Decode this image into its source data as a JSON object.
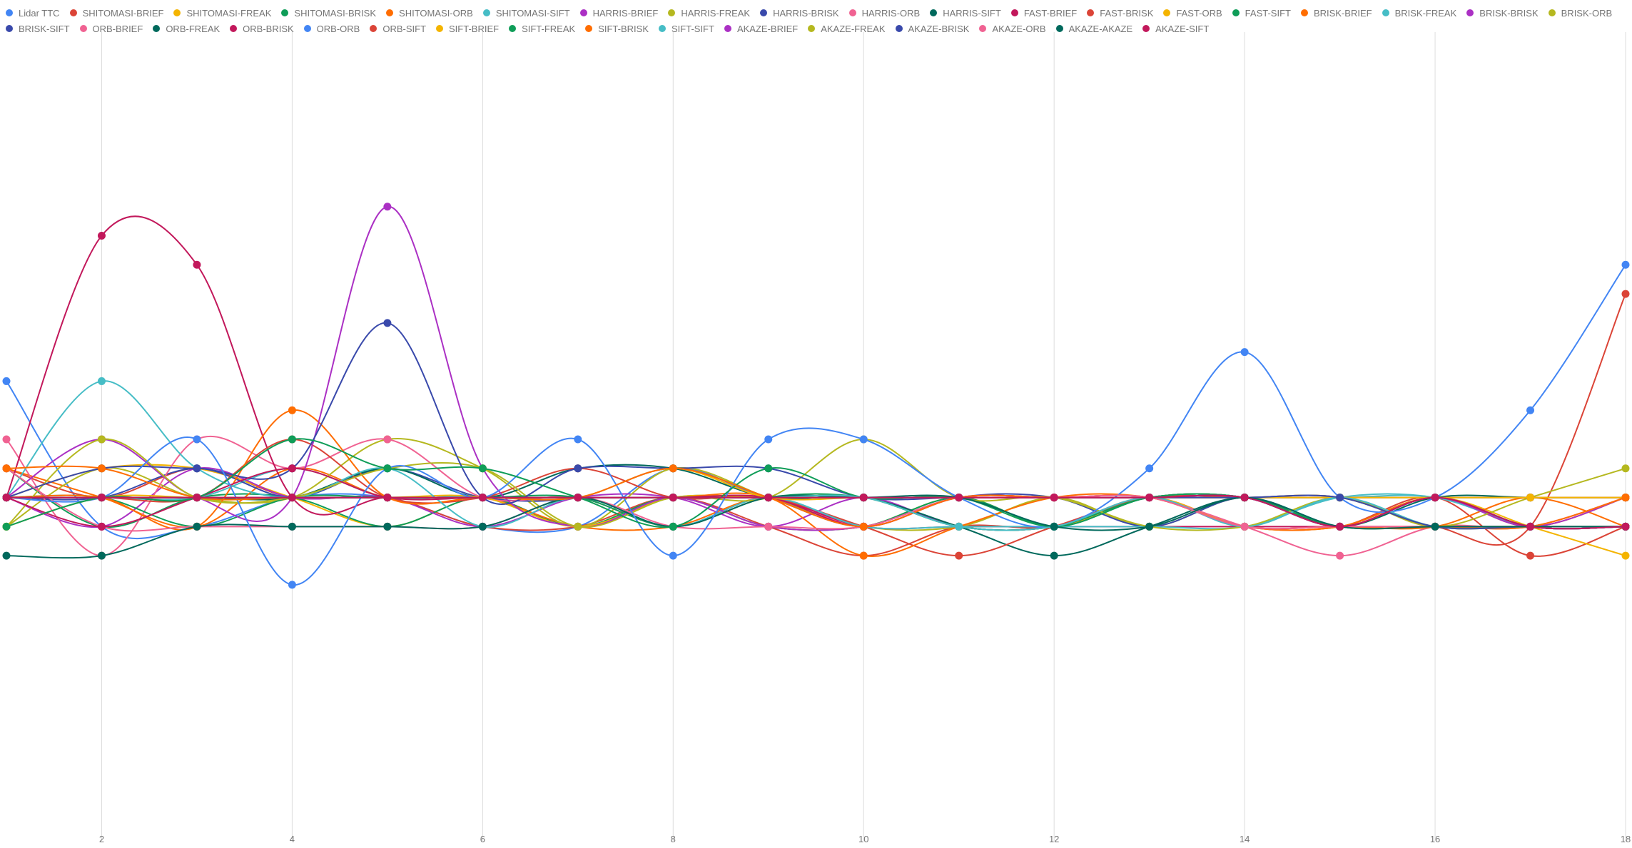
{
  "chart_data": {
    "type": "line",
    "x": [
      1,
      2,
      3,
      4,
      5,
      6,
      7,
      8,
      9,
      10,
      11,
      12,
      13,
      14,
      15,
      16,
      17,
      18
    ],
    "xticks": [
      2,
      4,
      6,
      8,
      10,
      12,
      14,
      16,
      18
    ],
    "xlim": [
      1,
      18
    ],
    "ylim": [
      0,
      28
    ],
    "grid": "vertical",
    "legend_position": "top",
    "series": [
      {
        "name": "Lidar TTC",
        "color": "#4285f4",
        "values": [
          16,
          11,
          11,
          12,
          12,
          11,
          11,
          13,
          12,
          12,
          11,
          11,
          12,
          12,
          11,
          12,
          11,
          11
        ]
      },
      {
        "name": "SHITOMASI-BRIEF",
        "color": "#db4437",
        "values": [
          13,
          12,
          13,
          12,
          12,
          11,
          11,
          12,
          11,
          10,
          11,
          11,
          12,
          11,
          11,
          12,
          10,
          11
        ]
      },
      {
        "name": "SHITOMASI-FREAK",
        "color": "#f4b400",
        "values": [
          12,
          13,
          13,
          12,
          11,
          12,
          11,
          12,
          11,
          11,
          12,
          11,
          12,
          11,
          11,
          12,
          11,
          10
        ]
      },
      {
        "name": "SHITOMASI-BRISK",
        "color": "#0f9d58",
        "values": [
          13,
          11,
          12,
          12,
          11,
          12,
          11,
          12,
          11,
          11,
          12,
          11,
          12,
          12,
          11,
          12,
          11,
          11
        ]
      },
      {
        "name": "SHITOMASI-ORB",
        "color": "#ff6d01",
        "values": [
          13,
          12,
          11,
          13,
          12,
          12,
          11,
          11,
          12,
          11,
          12,
          12,
          12,
          11,
          11,
          12,
          11,
          12
        ]
      },
      {
        "name": "SHITOMASI-SIFT",
        "color": "#46bdc6",
        "values": [
          12,
          12,
          12,
          13,
          12,
          12,
          11,
          12,
          12,
          12,
          11,
          11,
          12,
          12,
          12,
          12,
          11,
          11
        ]
      },
      {
        "name": "HARRIS-BRIEF",
        "color": "#ab30c4",
        "values": [
          12,
          11,
          13,
          12,
          12,
          11,
          12,
          12,
          11,
          12,
          11,
          11,
          12,
          12,
          11,
          12,
          11,
          11
        ]
      },
      {
        "name": "HARRIS-FREAK",
        "color": "#b5b81f",
        "values": [
          11,
          13,
          12,
          12,
          14,
          13,
          11,
          13,
          12,
          11,
          11,
          12,
          11,
          12,
          11,
          12,
          11,
          12
        ]
      },
      {
        "name": "HARRIS-BRISK",
        "color": "#3949ab",
        "values": [
          12,
          12,
          13,
          12,
          13,
          12,
          12,
          13,
          12,
          11,
          12,
          12,
          11,
          12,
          11,
          12,
          11,
          11
        ]
      },
      {
        "name": "HARRIS-ORB",
        "color": "#f06292",
        "values": [
          14,
          10,
          14,
          13,
          14,
          12,
          12,
          11,
          12,
          11,
          12,
          12,
          12,
          11,
          10,
          11,
          11,
          12
        ]
      },
      {
        "name": "HARRIS-SIFT",
        "color": "#00695c",
        "values": [
          12,
          12,
          12,
          12,
          13,
          12,
          13,
          13,
          12,
          12,
          11,
          10,
          11,
          12,
          11,
          12,
          11,
          11
        ]
      },
      {
        "name": "FAST-BRIEF",
        "color": "#c2185b",
        "values": [
          12,
          21,
          20,
          12,
          12,
          12,
          12,
          12,
          12,
          11,
          11,
          11,
          11,
          11,
          11,
          11,
          11,
          11
        ]
      },
      {
        "name": "FAST-BRISK",
        "color": "#db4437",
        "values": [
          12,
          12,
          12,
          14,
          12,
          12,
          13,
          12,
          12,
          11,
          10,
          11,
          12,
          12,
          12,
          11,
          11,
          19
        ]
      },
      {
        "name": "FAST-ORB",
        "color": "#f4b400",
        "values": [
          12,
          12,
          12,
          12,
          12,
          12,
          11,
          12,
          12,
          12,
          11,
          11,
          12,
          12,
          11,
          11,
          11,
          11
        ]
      },
      {
        "name": "FAST-SIFT",
        "color": "#0f9d58",
        "values": [
          12,
          12,
          11,
          12,
          12,
          12,
          12,
          11,
          12,
          12,
          11,
          11,
          12,
          12,
          11,
          11,
          11,
          11
        ]
      },
      {
        "name": "BRISK-BRIEF",
        "color": "#ff6d01",
        "values": [
          12,
          12,
          11,
          15,
          12,
          12,
          12,
          12,
          12,
          10,
          11,
          12,
          12,
          11,
          11,
          11,
          12,
          11
        ]
      },
      {
        "name": "BRISK-FREAK",
        "color": "#46bdc6",
        "values": [
          12,
          16,
          13,
          12,
          13,
          11,
          12,
          11,
          12,
          11,
          11,
          11,
          11,
          11,
          12,
          12,
          11,
          11
        ]
      },
      {
        "name": "BRISK-BRISK",
        "color": "#ab30c4",
        "values": [
          12,
          14,
          12,
          12,
          22,
          13,
          11,
          12,
          11,
          11,
          12,
          12,
          12,
          12,
          11,
          12,
          11,
          12
        ]
      },
      {
        "name": "BRISK-ORB",
        "color": "#b5b81f",
        "values": [
          11,
          14,
          12,
          12,
          13,
          13,
          11,
          12,
          12,
          14,
          12,
          12,
          11,
          11,
          12,
          11,
          12,
          13
        ]
      },
      {
        "name": "BRISK-SIFT",
        "color": "#3949ab",
        "values": [
          12,
          13,
          13,
          13,
          18,
          12,
          13,
          13,
          13,
          12,
          12,
          12,
          12,
          12,
          12,
          12,
          12,
          12
        ]
      },
      {
        "name": "ORB-BRIEF",
        "color": "#f06292",
        "values": [
          13,
          11,
          11,
          11,
          11,
          11,
          12,
          11,
          11,
          11,
          12,
          12,
          12,
          11,
          11,
          11,
          11,
          12
        ]
      },
      {
        "name": "ORB-FREAK",
        "color": "#00695c",
        "values": [
          10,
          10,
          11,
          11,
          11,
          11,
          12,
          11,
          12,
          12,
          12,
          12,
          12,
          12,
          11,
          12,
          12,
          12
        ]
      },
      {
        "name": "ORB-BRISK",
        "color": "#c2185b",
        "values": [
          12,
          11,
          12,
          13,
          12,
          12,
          12,
          12,
          12,
          11,
          12,
          12,
          12,
          12,
          11,
          12,
          11,
          11
        ]
      },
      {
        "name": "ORB-ORB",
        "color": "#4285f4",
        "values": [
          12,
          12,
          14,
          9,
          13,
          12,
          14,
          10,
          14,
          14,
          12,
          11,
          13,
          17,
          12,
          12,
          15,
          20
        ]
      },
      {
        "name": "ORB-SIFT",
        "color": "#db4437",
        "values": [
          12,
          12,
          12,
          12,
          12,
          12,
          12,
          12,
          12,
          12,
          12,
          12,
          12,
          12,
          12,
          12,
          12,
          12
        ]
      },
      {
        "name": "SIFT-BRIEF",
        "color": "#f4b400",
        "values": [
          11,
          12,
          12,
          12,
          12,
          12,
          12,
          13,
          12,
          12,
          12,
          12,
          12,
          12,
          12,
          12,
          12,
          12
        ]
      },
      {
        "name": "SIFT-FREAK",
        "color": "#0f9d58",
        "values": [
          11,
          12,
          12,
          14,
          13,
          13,
          12,
          11,
          13,
          12,
          12,
          11,
          12,
          12,
          11,
          12,
          11,
          11
        ]
      },
      {
        "name": "SIFT-BRISK",
        "color": "#ff6d01",
        "values": [
          13,
          13,
          12,
          12,
          12,
          12,
          12,
          13,
          12,
          11,
          12,
          12,
          12,
          11,
          11,
          11,
          11,
          12
        ]
      },
      {
        "name": "SIFT-SIFT",
        "color": "#46bdc6",
        "values": [
          12,
          12,
          12,
          12,
          12,
          12,
          12,
          12,
          12,
          12,
          11,
          11,
          12,
          11,
          12,
          11,
          11,
          11
        ]
      },
      {
        "name": "AKAZE-BRIEF",
        "color": "#ab30c4",
        "values": [
          12,
          12,
          12,
          12,
          12,
          12,
          12,
          12,
          12,
          12,
          12,
          12,
          12,
          12,
          11,
          12,
          11,
          11
        ]
      },
      {
        "name": "AKAZE-FREAK",
        "color": "#b5b81f",
        "values": [
          12,
          12,
          12,
          12,
          12,
          12,
          12,
          12,
          12,
          12,
          12,
          12,
          12,
          12,
          12,
          11,
          11,
          11
        ]
      },
      {
        "name": "AKAZE-BRISK",
        "color": "#3949ab",
        "values": [
          12,
          12,
          12,
          12,
          12,
          12,
          12,
          12,
          12,
          12,
          12,
          12,
          12,
          12,
          12,
          11,
          11,
          11
        ]
      },
      {
        "name": "AKAZE-ORB",
        "color": "#f06292",
        "values": [
          12,
          12,
          12,
          12,
          12,
          12,
          12,
          12,
          12,
          12,
          12,
          12,
          12,
          11,
          11,
          11,
          11,
          11
        ]
      },
      {
        "name": "AKAZE-AKAZE",
        "color": "#00695c",
        "values": [
          12,
          12,
          12,
          12,
          12,
          12,
          12,
          12,
          12,
          12,
          12,
          11,
          11,
          12,
          11,
          11,
          11,
          11
        ]
      },
      {
        "name": "AKAZE-SIFT",
        "color": "#c2185b",
        "values": [
          12,
          12,
          12,
          12,
          12,
          12,
          12,
          12,
          12,
          12,
          12,
          12,
          12,
          12,
          11,
          12,
          11,
          11
        ]
      }
    ]
  }
}
